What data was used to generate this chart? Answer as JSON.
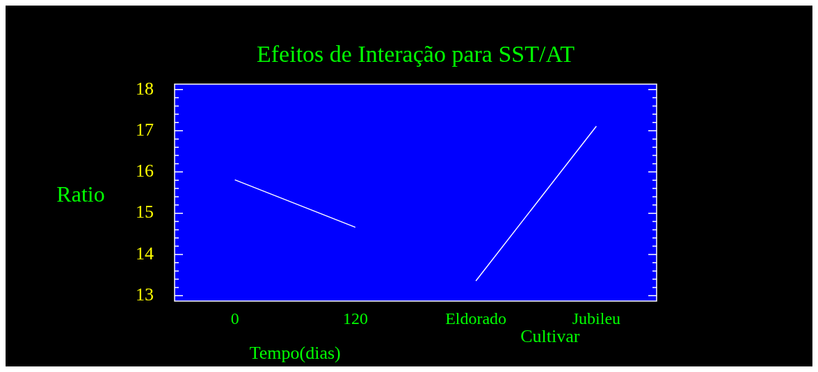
{
  "chart_data": {
    "type": "line",
    "title": "Efeitos de Interação para SST/AT",
    "xlabel": "Tempo(dias)",
    "ylabel": "Ratio",
    "annotations": [
      "Cultivar"
    ],
    "categories": [
      "0",
      "120",
      "Eldorado",
      "Jubileu"
    ],
    "series": [
      {
        "color": "#ffffff",
        "values": [
          15.81,
          14.66,
          null,
          null
        ]
      },
      {
        "color": "#ffffff",
        "values": [
          null,
          null,
          13.36,
          17.11
        ]
      }
    ],
    "ylim": [
      12.87,
      18.13
    ],
    "yticks": [
      13,
      {
        "value": 13.2,
        "label": null
      },
      {
        "value": 13.4,
        "label": null
      },
      {
        "value": 13.6,
        "label": null
      },
      {
        "value": 13.8,
        "label": null
      },
      14,
      {
        "value": 14.2,
        "label": null
      },
      {
        "value": 14.4,
        "label": null
      },
      {
        "value": 14.6,
        "label": null
      },
      {
        "value": 14.8,
        "label": null
      },
      15,
      {
        "value": 15.2,
        "label": null
      },
      {
        "value": 15.4,
        "label": null
      },
      {
        "value": 15.6,
        "label": null
      },
      {
        "value": 15.8,
        "label": null
      },
      16,
      {
        "value": 16.2,
        "label": null
      },
      {
        "value": 16.4,
        "label": null
      },
      {
        "value": 16.6,
        "label": null
      },
      {
        "value": 16.8,
        "label": null
      },
      17,
      {
        "value": 17.2,
        "label": null
      },
      {
        "value": 17.4,
        "label": null
      },
      {
        "value": 17.6,
        "label": null
      },
      {
        "value": 17.8,
        "label": null
      },
      18
    ],
    "grid": false,
    "legend": false,
    "marker": "none"
  }
}
